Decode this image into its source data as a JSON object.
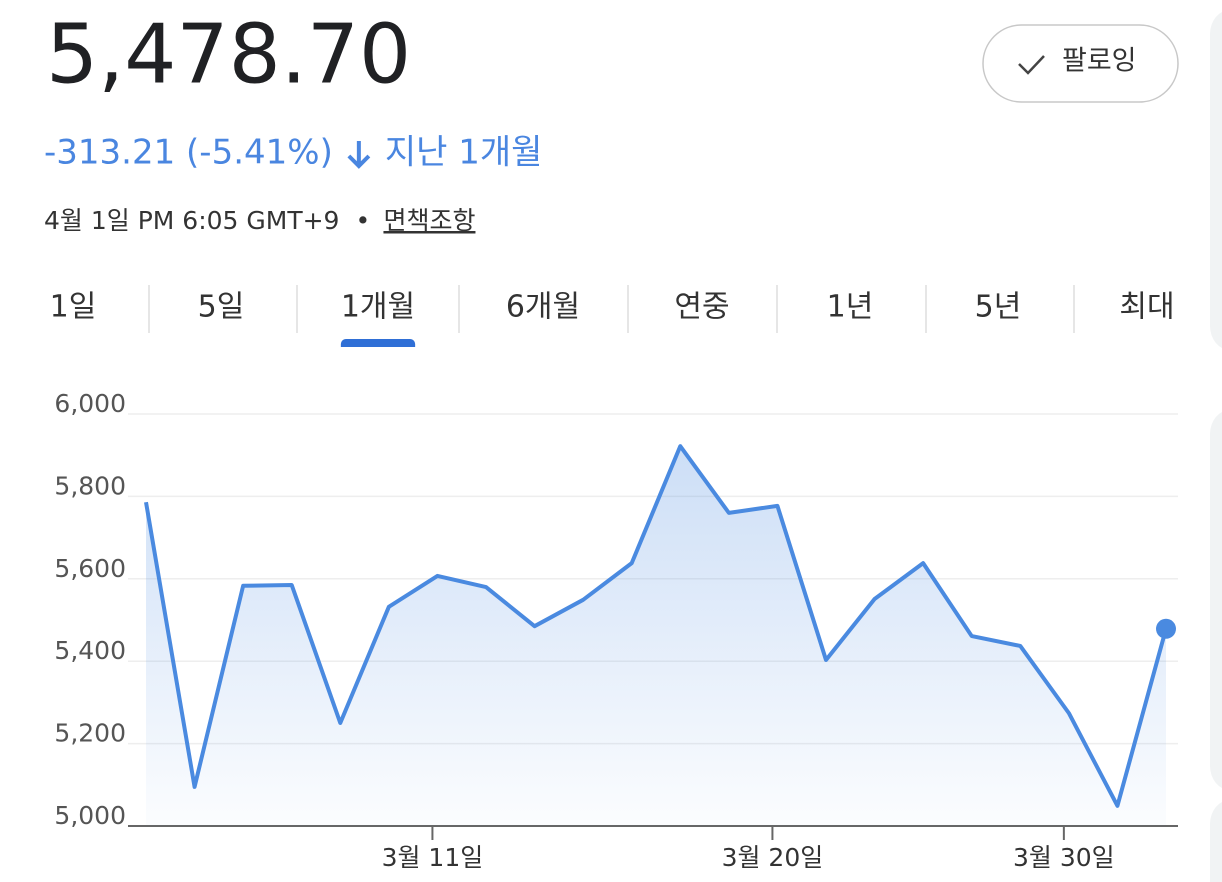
{
  "header": {
    "price": "5,478.70",
    "change": "-313.21 (-5.41%)",
    "period": "지난 1개월",
    "timestamp": "4월 1일 PM 6:05 GMT+9",
    "disclaimer": "면책조항"
  },
  "follow_button": "팔로잉",
  "tabs": [
    "1일",
    "5일",
    "1개월",
    "6개월",
    "연중",
    "1년",
    "5년",
    "최대"
  ],
  "active_tab": 2,
  "chart_data": {
    "type": "area",
    "color": "#4a8ae0",
    "categories": [
      null,
      null,
      null,
      null,
      null,
      null,
      "3월 11일",
      null,
      null,
      null,
      null,
      null,
      null,
      "3월 20일",
      null,
      null,
      null,
      null,
      null,
      "3월 30일",
      null,
      null
    ],
    "series": [
      {
        "values": [
          5786,
          5095,
          5583,
          5585,
          5250,
          5532,
          5607,
          5580,
          5485,
          5549,
          5638,
          5922,
          5760,
          5777,
          5403,
          5551,
          5638,
          5461,
          5437,
          5274,
          5049,
          5478.7
        ]
      }
    ],
    "ylim": [
      5000,
      6000
    ],
    "yticks": [
      {
        "value": 5000,
        "label": "5,000"
      },
      {
        "value": 5200,
        "label": "5,200"
      },
      {
        "value": 5400,
        "label": "5,400"
      },
      {
        "value": 5600,
        "label": "5,600"
      },
      {
        "value": 5800,
        "label": "5,800"
      },
      {
        "value": 6000,
        "label": "6,000"
      }
    ],
    "grid": true
  }
}
